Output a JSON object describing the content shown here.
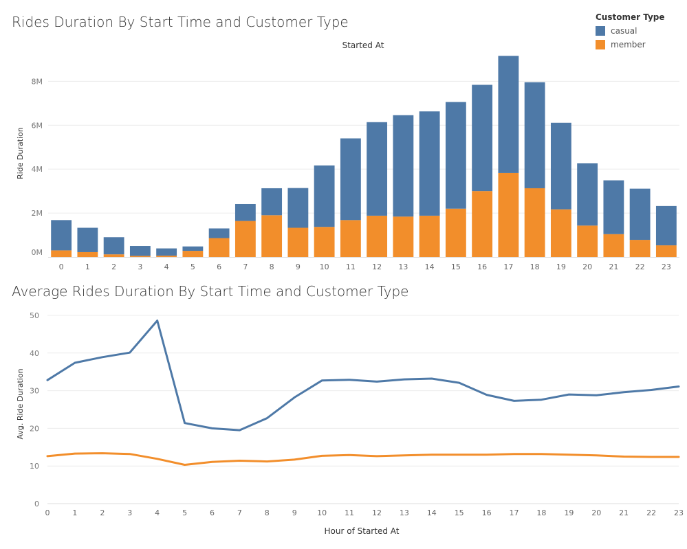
{
  "legend": {
    "title": "Customer Type",
    "items": [
      {
        "label": "casual",
        "color": "#4e79a7"
      },
      {
        "label": "member",
        "color": "#f28e2b"
      }
    ]
  },
  "chart_data": [
    {
      "type": "bar",
      "stacked": true,
      "title": "Rides Duration By Start Time and Customer Type",
      "header": "Started At",
      "ylabel": "Ride Duration",
      "categories": [
        "0",
        "1",
        "2",
        "3",
        "4",
        "5",
        "6",
        "7",
        "8",
        "9",
        "10",
        "11",
        "12",
        "13",
        "14",
        "15",
        "16",
        "17",
        "18",
        "19",
        "20",
        "21",
        "22",
        "23"
      ],
      "y_ticks": [
        {
          "value": 0,
          "label": "0M"
        },
        {
          "value": 2,
          "label": "2M"
        },
        {
          "value": 4,
          "label": "4M"
        },
        {
          "value": 6,
          "label": "6M"
        },
        {
          "value": 8,
          "label": "8M"
        }
      ],
      "ylim": [
        0,
        9.2
      ],
      "y_unit": "millions",
      "series": [
        {
          "name": "member",
          "color": "#f28e2b",
          "values": [
            0.3,
            0.22,
            0.12,
            0.05,
            0.06,
            0.28,
            0.86,
            1.64,
            1.9,
            1.33,
            1.37,
            1.68,
            1.88,
            1.84,
            1.88,
            2.2,
            3.0,
            3.82,
            3.13,
            2.17,
            1.43,
            1.04,
            0.78,
            0.53
          ]
        },
        {
          "name": "casual",
          "color": "#4e79a7",
          "values": [
            1.38,
            1.11,
            0.78,
            0.45,
            0.33,
            0.2,
            0.44,
            0.77,
            1.23,
            1.81,
            2.8,
            3.72,
            4.26,
            4.62,
            4.75,
            4.86,
            4.84,
            5.34,
            4.83,
            3.94,
            2.84,
            2.45,
            2.33,
            1.79
          ]
        }
      ],
      "grid": true
    },
    {
      "type": "line",
      "title": "Average Rides Duration By Start Time and Customer Type",
      "xlabel": "Hour of Started At",
      "ylabel": "Avg. Ride Duration",
      "x": [
        0,
        1,
        2,
        3,
        4,
        5,
        6,
        7,
        8,
        9,
        10,
        11,
        12,
        13,
        14,
        15,
        16,
        17,
        18,
        19,
        20,
        21,
        22,
        23
      ],
      "y_ticks": [
        0,
        10,
        20,
        30,
        40,
        50
      ],
      "ylim": [
        0,
        52
      ],
      "series": [
        {
          "name": "casual",
          "color": "#4e79a7",
          "values": [
            32.8,
            37.4,
            38.9,
            40.1,
            48.6,
            21.4,
            20.0,
            19.5,
            22.7,
            28.2,
            32.7,
            32.9,
            32.4,
            33.0,
            33.2,
            32.1,
            28.9,
            27.3,
            27.6,
            29.0,
            28.8,
            29.6,
            30.2,
            31.1
          ]
        },
        {
          "name": "member",
          "color": "#f28e2b",
          "values": [
            12.6,
            13.3,
            13.4,
            13.2,
            11.9,
            10.3,
            11.1,
            11.4,
            11.2,
            11.7,
            12.7,
            12.9,
            12.6,
            12.8,
            13.0,
            13.0,
            13.0,
            13.2,
            13.2,
            13.0,
            12.8,
            12.5,
            12.4,
            12.4
          ]
        }
      ],
      "grid": true
    }
  ]
}
